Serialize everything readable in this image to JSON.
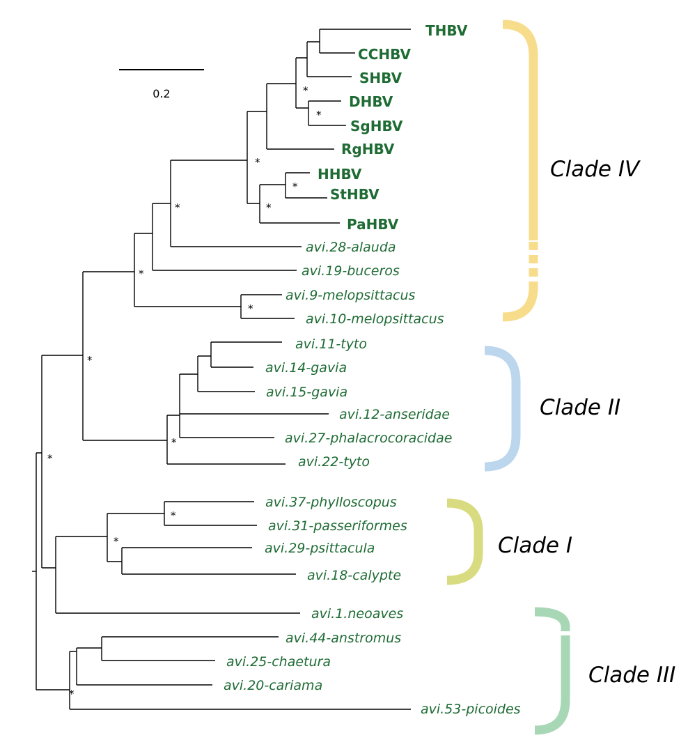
{
  "scale_bar": {
    "label": "0.2"
  },
  "support_symbol": "*",
  "colors": {
    "text": "#1e6b34",
    "branch": "#000000",
    "clade_iv": "#f7dc8c",
    "clade_ii": "#bcd6ee",
    "clade_i": "#d9db80",
    "clade_iii": "#a8d7b6"
  },
  "taxa": [
    {
      "label": "THBV",
      "style": "bold"
    },
    {
      "label": "CCHBV",
      "style": "bold"
    },
    {
      "label": "SHBV",
      "style": "bold"
    },
    {
      "label": "DHBV",
      "style": "bold"
    },
    {
      "label": "SgHBV",
      "style": "bold"
    },
    {
      "label": "RgHBV",
      "style": "bold"
    },
    {
      "label": "HHBV",
      "style": "bold"
    },
    {
      "label": "StHBV",
      "style": "bold"
    },
    {
      "label": "PaHBV",
      "style": "bold"
    },
    {
      "label": "avi.28-alauda",
      "style": "italic"
    },
    {
      "label": "avi.19-buceros",
      "style": "italic"
    },
    {
      "label": "avi.9-melopsittacus",
      "style": "italic"
    },
    {
      "label": "avi.10-melopsittacus",
      "style": "italic"
    },
    {
      "label": "avi.11-tyto",
      "style": "italic"
    },
    {
      "label": "avi.14-gavia",
      "style": "italic"
    },
    {
      "label": "avi.15-gavia",
      "style": "italic"
    },
    {
      "label": "avi.12-anseridae",
      "style": "italic"
    },
    {
      "label": "avi.27-phalacrocoracidae",
      "style": "italic"
    },
    {
      "label": "avi.22-tyto",
      "style": "italic"
    },
    {
      "label": "avi.37-phylloscopus",
      "style": "italic"
    },
    {
      "label": "avi.31-passeriformes",
      "style": "italic"
    },
    {
      "label": "avi.29-psittacula",
      "style": "italic"
    },
    {
      "label": "avi.18-calypte",
      "style": "italic"
    },
    {
      "label": "avi.1.neoaves",
      "style": "italic"
    },
    {
      "label": "avi.44-anstromus",
      "style": "italic"
    },
    {
      "label": "avi.25-chaetura",
      "style": "italic"
    },
    {
      "label": "avi.20-cariama",
      "style": "italic"
    },
    {
      "label": "avi.53-picoides",
      "style": "italic"
    }
  ],
  "clades": [
    {
      "label": "Clade IV"
    },
    {
      "label": "Clade II"
    },
    {
      "label": "Clade I"
    },
    {
      "label": "Clade III"
    }
  ]
}
